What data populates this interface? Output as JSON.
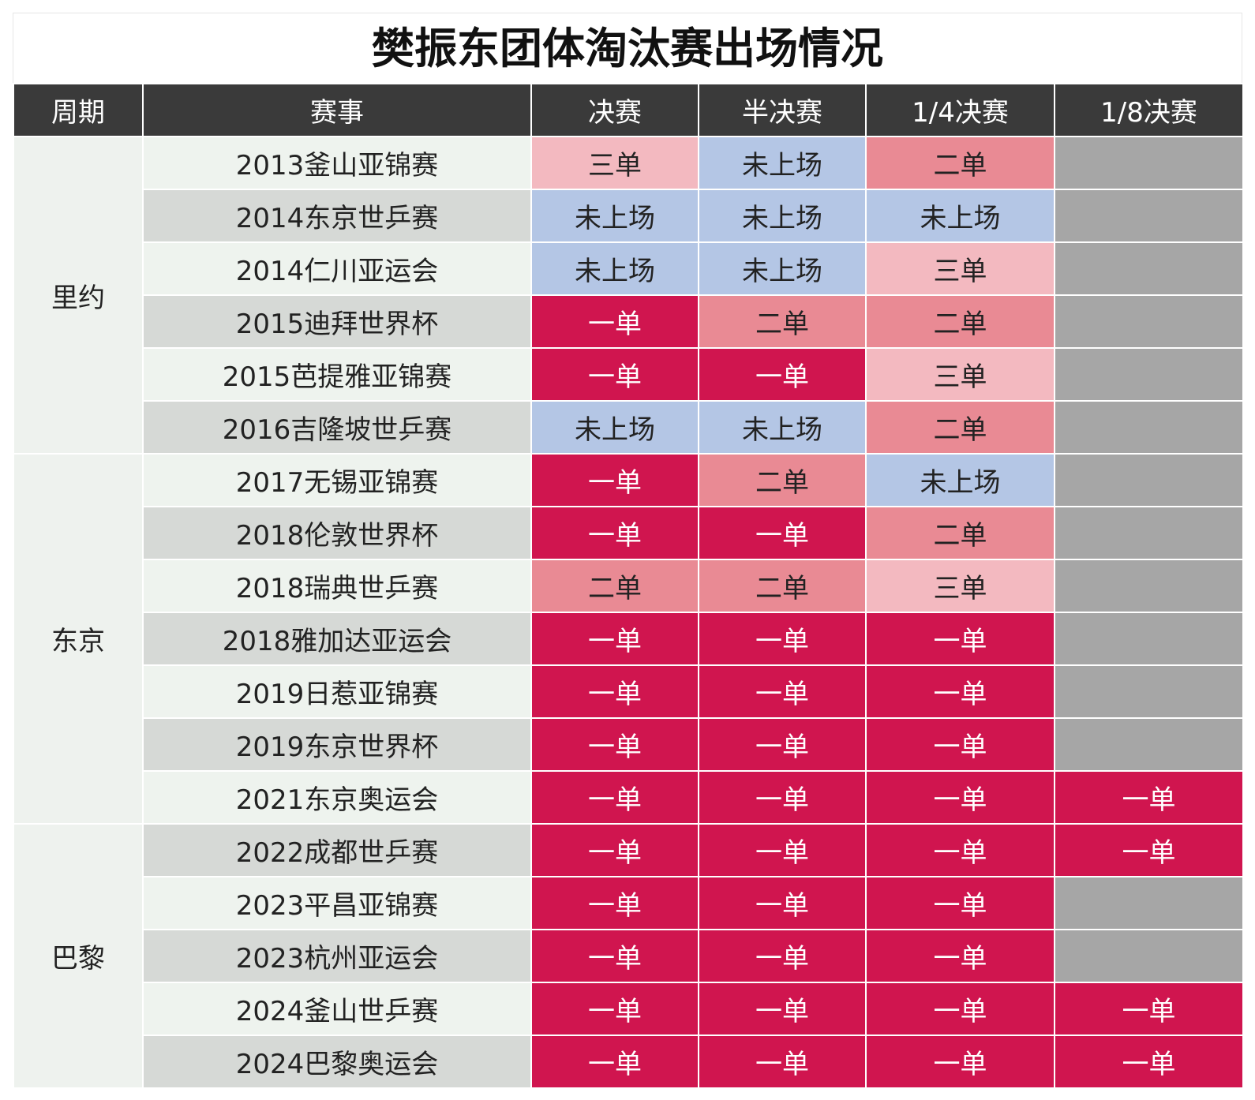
{
  "title": "樊振东团体淘汰赛出场情况",
  "header": [
    "周期",
    "赛事",
    "决赛",
    "半决赛",
    "1/4决赛",
    "1/8决赛"
  ],
  "result_colors": {
    "一单": "#d0154f",
    "二单": "#e98a94",
    "三单": "#f3b9c0",
    "未上场": "#b4c6e5"
  },
  "empty_color": "#a6a6a6",
  "periods": [
    {
      "label": "里约",
      "rows": [
        {
          "event": "2013釜山亚锦赛",
          "results": [
            "三单",
            "未上场",
            "二单",
            null
          ]
        },
        {
          "event": "2014东京世乒赛",
          "results": [
            "未上场",
            "未上场",
            "未上场",
            null
          ]
        },
        {
          "event": "2014仁川亚运会",
          "results": [
            "未上场",
            "未上场",
            "三单",
            null
          ]
        },
        {
          "event": "2015迪拜世界杯",
          "results": [
            "一单",
            "二单",
            "二单",
            null
          ]
        },
        {
          "event": "2015芭提雅亚锦赛",
          "results": [
            "一单",
            "一单",
            "三单",
            null
          ]
        },
        {
          "event": "2016吉隆坡世乒赛",
          "results": [
            "未上场",
            "未上场",
            "二单",
            null
          ]
        }
      ]
    },
    {
      "label": "东京",
      "rows": [
        {
          "event": "2017无锡亚锦赛",
          "results": [
            "一单",
            "二单",
            "未上场",
            null
          ]
        },
        {
          "event": "2018伦敦世界杯",
          "results": [
            "一单",
            "一单",
            "二单",
            null
          ]
        },
        {
          "event": "2018瑞典世乒赛",
          "results": [
            "二单",
            "二单",
            "三单",
            null
          ]
        },
        {
          "event": "2018雅加达亚运会",
          "results": [
            "一单",
            "一单",
            "一单",
            null
          ]
        },
        {
          "event": "2019日惹亚锦赛",
          "results": [
            "一单",
            "一单",
            "一单",
            null
          ]
        },
        {
          "event": "2019东京世界杯",
          "results": [
            "一单",
            "一单",
            "一单",
            null
          ]
        },
        {
          "event": "2021东京奥运会",
          "results": [
            "一单",
            "一单",
            "一单",
            "一单"
          ]
        }
      ]
    },
    {
      "label": "巴黎",
      "rows": [
        {
          "event": "2022成都世乒赛",
          "results": [
            "一单",
            "一单",
            "一单",
            "一单"
          ]
        },
        {
          "event": "2023平昌亚锦赛",
          "results": [
            "一单",
            "一单",
            "一单",
            null
          ]
        },
        {
          "event": "2023杭州亚运会",
          "results": [
            "一单",
            "一单",
            "一单",
            null
          ]
        },
        {
          "event": "2024釜山世乒赛",
          "results": [
            "一单",
            "一单",
            "一单",
            "一单"
          ]
        },
        {
          "event": "2024巴黎奥运会",
          "results": [
            "一单",
            "一单",
            "一单",
            "一单"
          ]
        }
      ]
    }
  ]
}
